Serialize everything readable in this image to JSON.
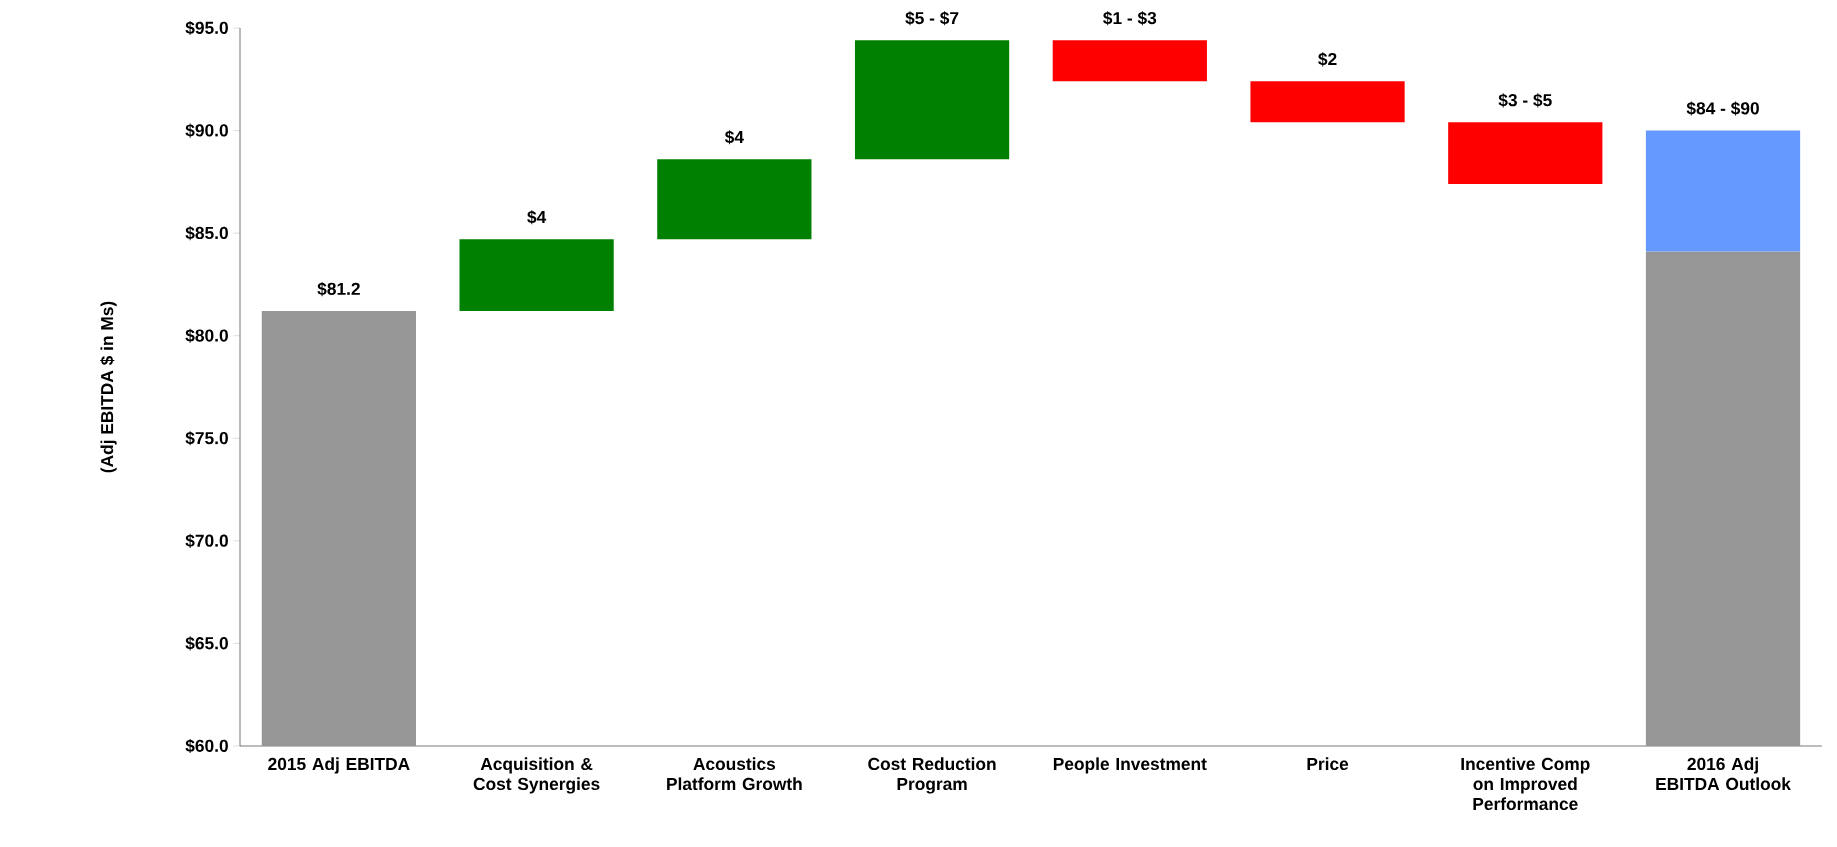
{
  "chart_data": {
    "type": "bar",
    "ylabel": "(Adj EBITDA $ in Ms)",
    "categories": [
      "2015 Adj EBITDA",
      "Acquisition & Cost Synergies",
      "Acoustics Platform Growth",
      "Cost Reduction Program",
      "People Investment",
      "Price",
      "Incentive Comp on Improved Performance",
      "2016 Adj EBITDA Outlook"
    ],
    "series": [
      {
        "values": [
          21.2,
          3.5,
          3.9,
          5.8,
          -2.0,
          -2.0,
          -3.0,
          24.1
        ],
        "base": [
          60,
          81.2,
          84.7,
          88.6,
          94.4,
          92.4,
          90.4,
          60
        ],
        "colors": [
          "#969696",
          "#008000",
          "#008000",
          "#008000",
          "#ff0000",
          "#ff0000",
          "#ff0000",
          "#969696"
        ],
        "value_labels": [
          "$81.2",
          "$4",
          "$4",
          null,
          null,
          "$2",
          null,
          null
        ]
      },
      {
        "values": [
          null,
          null,
          null,
          null,
          null,
          null,
          null,
          5.9
        ],
        "base": [
          null,
          null,
          null,
          null,
          null,
          null,
          null,
          84.1
        ],
        "color": "#6699ff"
      }
    ],
    "annotations": [
      {
        "text": "$5 - $7",
        "x": "Cost Reduction Program",
        "y": 94.4
      },
      {
        "text": "$1 - $3",
        "x": "People Investment",
        "y": 94.4
      },
      {
        "text": "$3 - $5",
        "x": "Incentive Comp on Improved Performance",
        "y": 90.4
      },
      {
        "text": "$84 - $90",
        "x": "2016 Adj EBITDA Outlook",
        "y": 90.0
      }
    ],
    "ylim": [
      60,
      95
    ],
    "yticks": [
      {
        "value": 60,
        "label": "$60.0"
      },
      {
        "value": 65,
        "label": "$65.0"
      },
      {
        "value": 70,
        "label": "$70.0"
      },
      {
        "value": 75,
        "label": "$75.0"
      },
      {
        "value": 80,
        "label": "$80.0"
      },
      {
        "value": 85,
        "label": "$85.0"
      },
      {
        "value": 90,
        "label": "$90.0"
      },
      {
        "value": 95,
        "label": "$95.0"
      }
    ]
  }
}
